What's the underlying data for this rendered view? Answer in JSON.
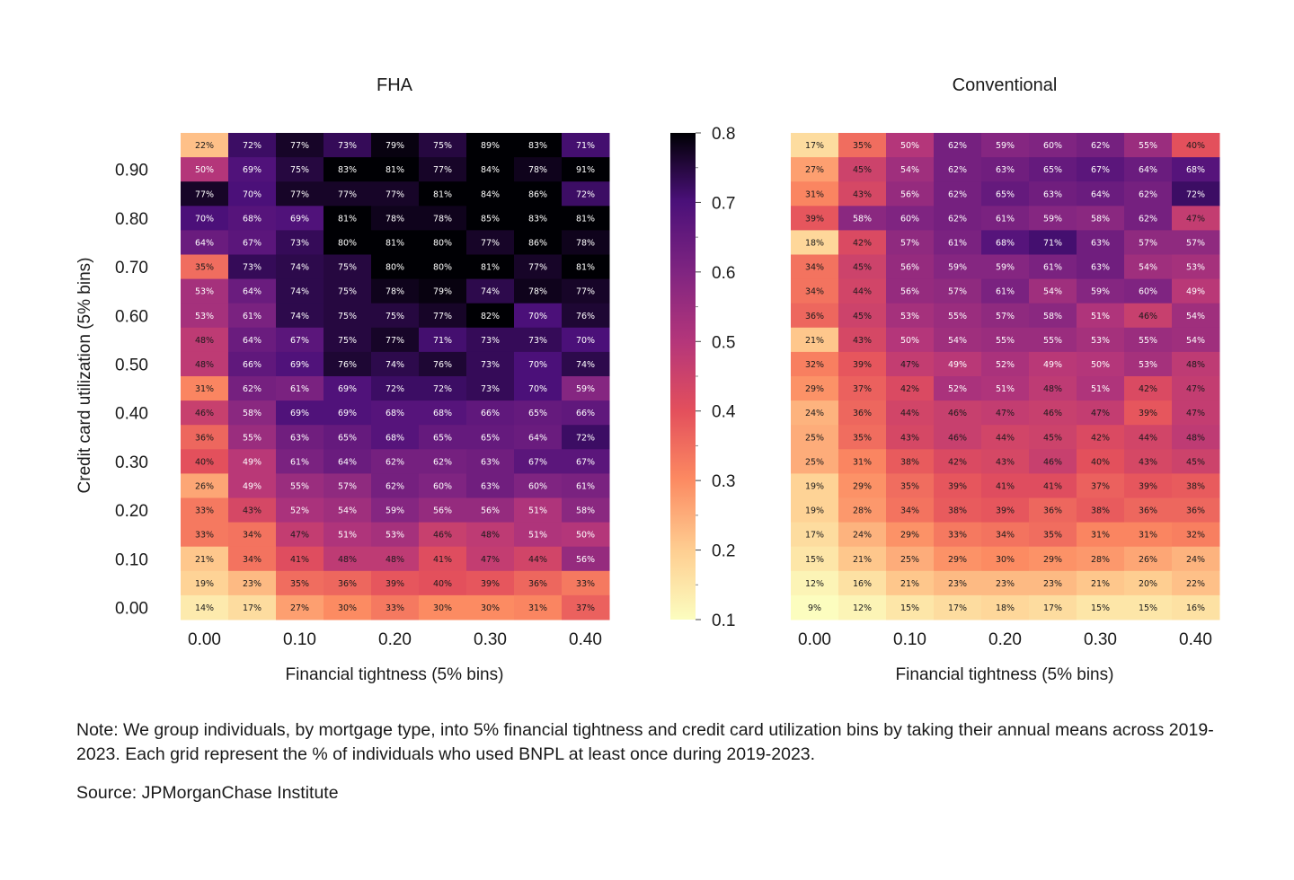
{
  "chart_data": [
    {
      "type": "heatmap",
      "title": "FHA",
      "xlabel": "Financial tightness (5% bins)",
      "ylabel": "Credit card utilization (5% bins)",
      "x_bins": [
        0.0,
        0.05,
        0.1,
        0.15,
        0.2,
        0.25,
        0.3,
        0.35,
        0.4
      ],
      "y_bins": [
        0.95,
        0.9,
        0.85,
        0.8,
        0.75,
        0.7,
        0.65,
        0.6,
        0.55,
        0.5,
        0.45,
        0.4,
        0.35,
        0.3,
        0.25,
        0.2,
        0.15,
        0.1,
        0.05,
        0.0
      ],
      "x_tick_labels": [
        "0.00",
        "0.10",
        "0.20",
        "0.30",
        "0.40"
      ],
      "y_tick_labels": [
        "0.90",
        "0.80",
        "0.70",
        "0.60",
        "0.50",
        "0.40",
        "0.30",
        "0.20",
        "0.10",
        "0.00"
      ],
      "values": [
        [
          22,
          72,
          77,
          73,
          79,
          75,
          89,
          83,
          71
        ],
        [
          50,
          69,
          75,
          83,
          81,
          77,
          84,
          78,
          91
        ],
        [
          77,
          70,
          77,
          77,
          77,
          81,
          84,
          86,
          72
        ],
        [
          70,
          68,
          69,
          81,
          78,
          78,
          85,
          83,
          81
        ],
        [
          64,
          67,
          73,
          80,
          81,
          80,
          77,
          86,
          78
        ],
        [
          35,
          73,
          74,
          75,
          80,
          80,
          81,
          77,
          81
        ],
        [
          53,
          64,
          74,
          75,
          78,
          79,
          74,
          78,
          77
        ],
        [
          53,
          61,
          74,
          75,
          75,
          77,
          82,
          70,
          76
        ],
        [
          48,
          64,
          67,
          75,
          77,
          71,
          73,
          73,
          70
        ],
        [
          48,
          66,
          69,
          76,
          74,
          76,
          73,
          70,
          74
        ],
        [
          31,
          62,
          61,
          69,
          72,
          72,
          73,
          70,
          59
        ],
        [
          46,
          58,
          69,
          69,
          68,
          68,
          66,
          65,
          66
        ],
        [
          36,
          55,
          63,
          65,
          68,
          65,
          65,
          64,
          72
        ],
        [
          40,
          49,
          61,
          64,
          62,
          62,
          63,
          67,
          67
        ],
        [
          26,
          49,
          55,
          57,
          62,
          60,
          63,
          60,
          61
        ],
        [
          33,
          43,
          52,
          54,
          59,
          56,
          56,
          51,
          58
        ],
        [
          33,
          34,
          47,
          51,
          53,
          46,
          48,
          51,
          50
        ],
        [
          21,
          34,
          41,
          48,
          48,
          41,
          47,
          44,
          56
        ],
        [
          19,
          23,
          35,
          36,
          39,
          40,
          39,
          36,
          33
        ],
        [
          14,
          17,
          27,
          30,
          33,
          30,
          30,
          31,
          37
        ]
      ]
    },
    {
      "type": "heatmap",
      "title": "Conventional",
      "xlabel": "Financial tightness (5% bins)",
      "ylabel": "",
      "x_bins": [
        0.0,
        0.05,
        0.1,
        0.15,
        0.2,
        0.25,
        0.3,
        0.35,
        0.4
      ],
      "y_bins": [
        0.95,
        0.9,
        0.85,
        0.8,
        0.75,
        0.7,
        0.65,
        0.6,
        0.55,
        0.5,
        0.45,
        0.4,
        0.35,
        0.3,
        0.25,
        0.2,
        0.15,
        0.1,
        0.05,
        0.0
      ],
      "x_tick_labels": [
        "0.00",
        "0.10",
        "0.20",
        "0.30",
        "0.40"
      ],
      "values": [
        [
          17,
          35,
          50,
          62,
          59,
          60,
          62,
          55,
          40
        ],
        [
          27,
          45,
          54,
          62,
          63,
          65,
          67,
          64,
          68
        ],
        [
          31,
          43,
          56,
          62,
          65,
          63,
          64,
          62,
          72
        ],
        [
          39,
          58,
          60,
          62,
          61,
          59,
          58,
          62,
          47
        ],
        [
          18,
          42,
          57,
          61,
          68,
          71,
          63,
          57,
          57
        ],
        [
          34,
          45,
          56,
          59,
          59,
          61,
          63,
          54,
          53
        ],
        [
          34,
          44,
          56,
          57,
          61,
          54,
          59,
          60,
          49
        ],
        [
          36,
          45,
          53,
          55,
          57,
          58,
          51,
          46,
          54
        ],
        [
          21,
          43,
          50,
          54,
          55,
          55,
          53,
          55,
          54
        ],
        [
          32,
          39,
          47,
          49,
          52,
          49,
          50,
          53,
          48
        ],
        [
          29,
          37,
          42,
          52,
          51,
          48,
          51,
          42,
          47
        ],
        [
          24,
          36,
          44,
          46,
          47,
          46,
          47,
          39,
          47
        ],
        [
          25,
          35,
          43,
          46,
          44,
          45,
          42,
          44,
          48
        ],
        [
          25,
          31,
          38,
          42,
          43,
          46,
          40,
          43,
          45
        ],
        [
          19,
          29,
          35,
          39,
          41,
          41,
          37,
          39,
          38
        ],
        [
          19,
          28,
          34,
          38,
          39,
          36,
          38,
          36,
          36
        ],
        [
          17,
          24,
          29,
          33,
          34,
          35,
          31,
          31,
          32
        ],
        [
          15,
          21,
          25,
          29,
          30,
          29,
          28,
          26,
          24
        ],
        [
          12,
          16,
          21,
          23,
          23,
          23,
          21,
          20,
          22
        ],
        [
          9,
          12,
          15,
          17,
          18,
          17,
          15,
          15,
          16
        ]
      ]
    }
  ],
  "colorbar": {
    "colormap": "magma_r",
    "min": 0.1,
    "max": 0.8,
    "tick_labels": [
      "0.8",
      "0.7",
      "0.6",
      "0.5",
      "0.4",
      "0.3",
      "0.2",
      "0.1"
    ],
    "tick_values": [
      0.8,
      0.7,
      0.6,
      0.5,
      0.4,
      0.3,
      0.2,
      0.1
    ]
  },
  "note": "Note: We group individuals, by mortgage type, into 5% financial tightness and credit card utilization bins by taking their annual means across 2019-2023. Each grid represent the % of individuals who used BNPL at least once during 2019-2023.",
  "source": "Source: JPMorganChase Institute"
}
